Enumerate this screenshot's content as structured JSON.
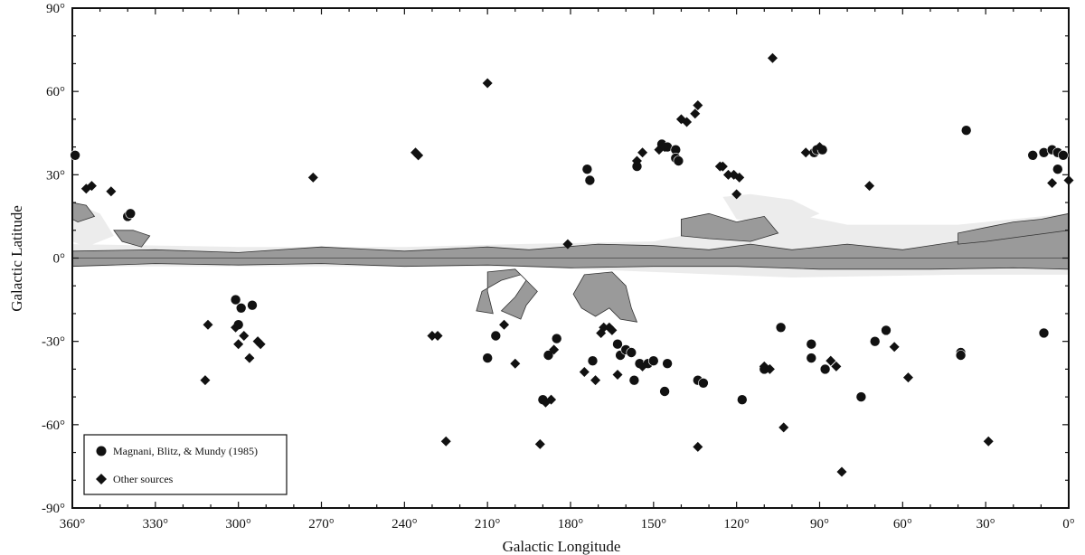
{
  "chart_data": {
    "type": "scatter",
    "xlabel": "Galactic Longitude",
    "ylabel": "Galactic Latitude",
    "xlim": [
      360,
      0
    ],
    "ylim": [
      -90,
      90
    ],
    "x_ticks": [
      360,
      330,
      300,
      270,
      240,
      210,
      180,
      150,
      120,
      90,
      60,
      30,
      0
    ],
    "y_ticks": [
      90,
      60,
      30,
      0,
      -30,
      -60,
      -90
    ],
    "x_tick_labels": [
      "360°",
      "330°",
      "300°",
      "270°",
      "240°",
      "210°",
      "180°",
      "150°",
      "120°",
      "90°",
      "60°",
      "30°",
      "0°"
    ],
    "y_tick_labels": [
      "90°",
      "60°",
      "30°",
      "0°",
      "-30°",
      "-60°",
      "-90°"
    ],
    "legend": {
      "position": "bottom-left"
    },
    "series": [
      {
        "name": "Magnani, Blitz, & Mundy (1985)",
        "marker": "circle",
        "color": "#111111",
        "points": [
          [
            359,
            37
          ],
          [
            340,
            15
          ],
          [
            339,
            16
          ],
          [
            301,
            -15
          ],
          [
            299,
            -18
          ],
          [
            300,
            -24
          ],
          [
            295,
            -17
          ],
          [
            210,
            -36
          ],
          [
            207,
            -28
          ],
          [
            190,
            -51
          ],
          [
            188,
            -35
          ],
          [
            185,
            -29
          ],
          [
            174,
            32
          ],
          [
            173,
            28
          ],
          [
            172,
            -37
          ],
          [
            163,
            -31
          ],
          [
            162,
            -35
          ],
          [
            160,
            -33
          ],
          [
            158,
            -34
          ],
          [
            157,
            -44
          ],
          [
            156,
            33
          ],
          [
            155,
            -38
          ],
          [
            152,
            -38
          ],
          [
            150,
            -37
          ],
          [
            147,
            41
          ],
          [
            146,
            -48
          ],
          [
            145,
            40
          ],
          [
            145,
            -38
          ],
          [
            142,
            39
          ],
          [
            142,
            36
          ],
          [
            141,
            35
          ],
          [
            134,
            -44
          ],
          [
            132,
            -45
          ],
          [
            118,
            -51
          ],
          [
            110,
            -40
          ],
          [
            104,
            -25
          ],
          [
            93,
            -31
          ],
          [
            93,
            -36
          ],
          [
            92,
            38
          ],
          [
            91,
            39
          ],
          [
            89,
            39
          ],
          [
            88,
            -40
          ],
          [
            75,
            -50
          ],
          [
            70,
            -30
          ],
          [
            66,
            -26
          ],
          [
            39,
            -34
          ],
          [
            39,
            -35
          ],
          [
            37,
            46
          ],
          [
            9,
            -27
          ],
          [
            4,
            32
          ],
          [
            13,
            37
          ],
          [
            9,
            38
          ],
          [
            6,
            39
          ],
          [
            4,
            38
          ],
          [
            2,
            37
          ]
        ]
      },
      {
        "name": "Other sources",
        "marker": "diamond",
        "color": "#111111",
        "points": [
          [
            355,
            25
          ],
          [
            353,
            26
          ],
          [
            346,
            24
          ],
          [
            311,
            -24
          ],
          [
            312,
            -44
          ],
          [
            301,
            -25
          ],
          [
            300,
            -31
          ],
          [
            298,
            -28
          ],
          [
            296,
            -36
          ],
          [
            293,
            -30
          ],
          [
            292,
            -31
          ],
          [
            273,
            29
          ],
          [
            236,
            38
          ],
          [
            235,
            37
          ],
          [
            230,
            -28
          ],
          [
            228,
            -28
          ],
          [
            225,
            -66
          ],
          [
            210,
            63
          ],
          [
            204,
            -24
          ],
          [
            200,
            -38
          ],
          [
            191,
            -67
          ],
          [
            189,
            -52
          ],
          [
            187,
            -51
          ],
          [
            186,
            -33
          ],
          [
            181,
            5
          ],
          [
            175,
            -41
          ],
          [
            171,
            -44
          ],
          [
            169,
            -27
          ],
          [
            168,
            -25
          ],
          [
            166,
            -25
          ],
          [
            165,
            -26
          ],
          [
            163,
            -42
          ],
          [
            156,
            35
          ],
          [
            154,
            38
          ],
          [
            154,
            -39
          ],
          [
            148,
            39
          ],
          [
            146,
            40
          ],
          [
            140,
            50
          ],
          [
            138,
            49
          ],
          [
            135,
            52
          ],
          [
            134,
            55
          ],
          [
            134,
            -68
          ],
          [
            126,
            33
          ],
          [
            125,
            33
          ],
          [
            123,
            30
          ],
          [
            121,
            30
          ],
          [
            119,
            29
          ],
          [
            120,
            23
          ],
          [
            110,
            -39
          ],
          [
            108,
            -40
          ],
          [
            107,
            72
          ],
          [
            103,
            -61
          ],
          [
            95,
            38
          ],
          [
            90,
            40
          ],
          [
            86,
            -37
          ],
          [
            84,
            -39
          ],
          [
            82,
            -77
          ],
          [
            72,
            26
          ],
          [
            63,
            -32
          ],
          [
            58,
            -43
          ],
          [
            29,
            -66
          ],
          [
            6,
            27
          ],
          [
            0,
            28
          ]
        ]
      }
    ],
    "background_contours": "Grey-shaded regions along the galactic plane (latitude near 0°) with extended patches near longitudes 190°-160° and 120°-0°"
  }
}
